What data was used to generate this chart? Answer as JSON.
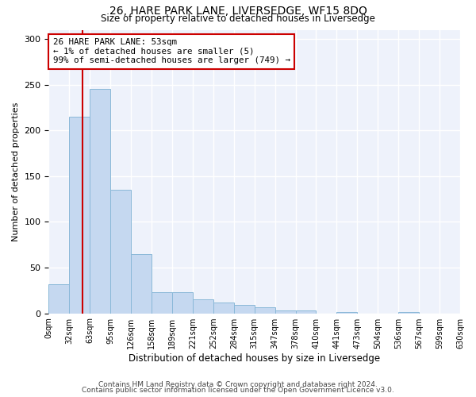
{
  "title": "26, HARE PARK LANE, LIVERSEDGE, WF15 8DQ",
  "subtitle": "Size of property relative to detached houses in Liversedge",
  "xlabel": "Distribution of detached houses by size in Liversedge",
  "ylabel": "Number of detached properties",
  "bar_color": "#c5d8f0",
  "bar_edge_color": "#8ab8d8",
  "background_color": "#eef2fb",
  "grid_color": "#ffffff",
  "annotation_box_color": "#cc0000",
  "vline_color": "#cc0000",
  "vline_x": 1.65,
  "annotation_text": "26 HARE PARK LANE: 53sqm\n← 1% of detached houses are smaller (5)\n99% of semi-detached houses are larger (749) →",
  "bin_labels": [
    "0sqm",
    "32sqm",
    "63sqm",
    "95sqm",
    "126sqm",
    "158sqm",
    "189sqm",
    "221sqm",
    "252sqm",
    "284sqm",
    "315sqm",
    "347sqm",
    "378sqm",
    "410sqm",
    "441sqm",
    "473sqm",
    "504sqm",
    "536sqm",
    "567sqm",
    "599sqm",
    "630sqm"
  ],
  "counts": [
    32,
    215,
    245,
    135,
    65,
    23,
    23,
    15,
    12,
    9,
    7,
    3,
    3,
    0,
    1,
    0,
    0,
    1,
    0,
    0
  ],
  "ylim": [
    0,
    310
  ],
  "yticks": [
    0,
    50,
    100,
    150,
    200,
    250,
    300
  ],
  "footer1": "Contains HM Land Registry data © Crown copyright and database right 2024.",
  "footer2": "Contains public sector information licensed under the Open Government Licence v3.0."
}
